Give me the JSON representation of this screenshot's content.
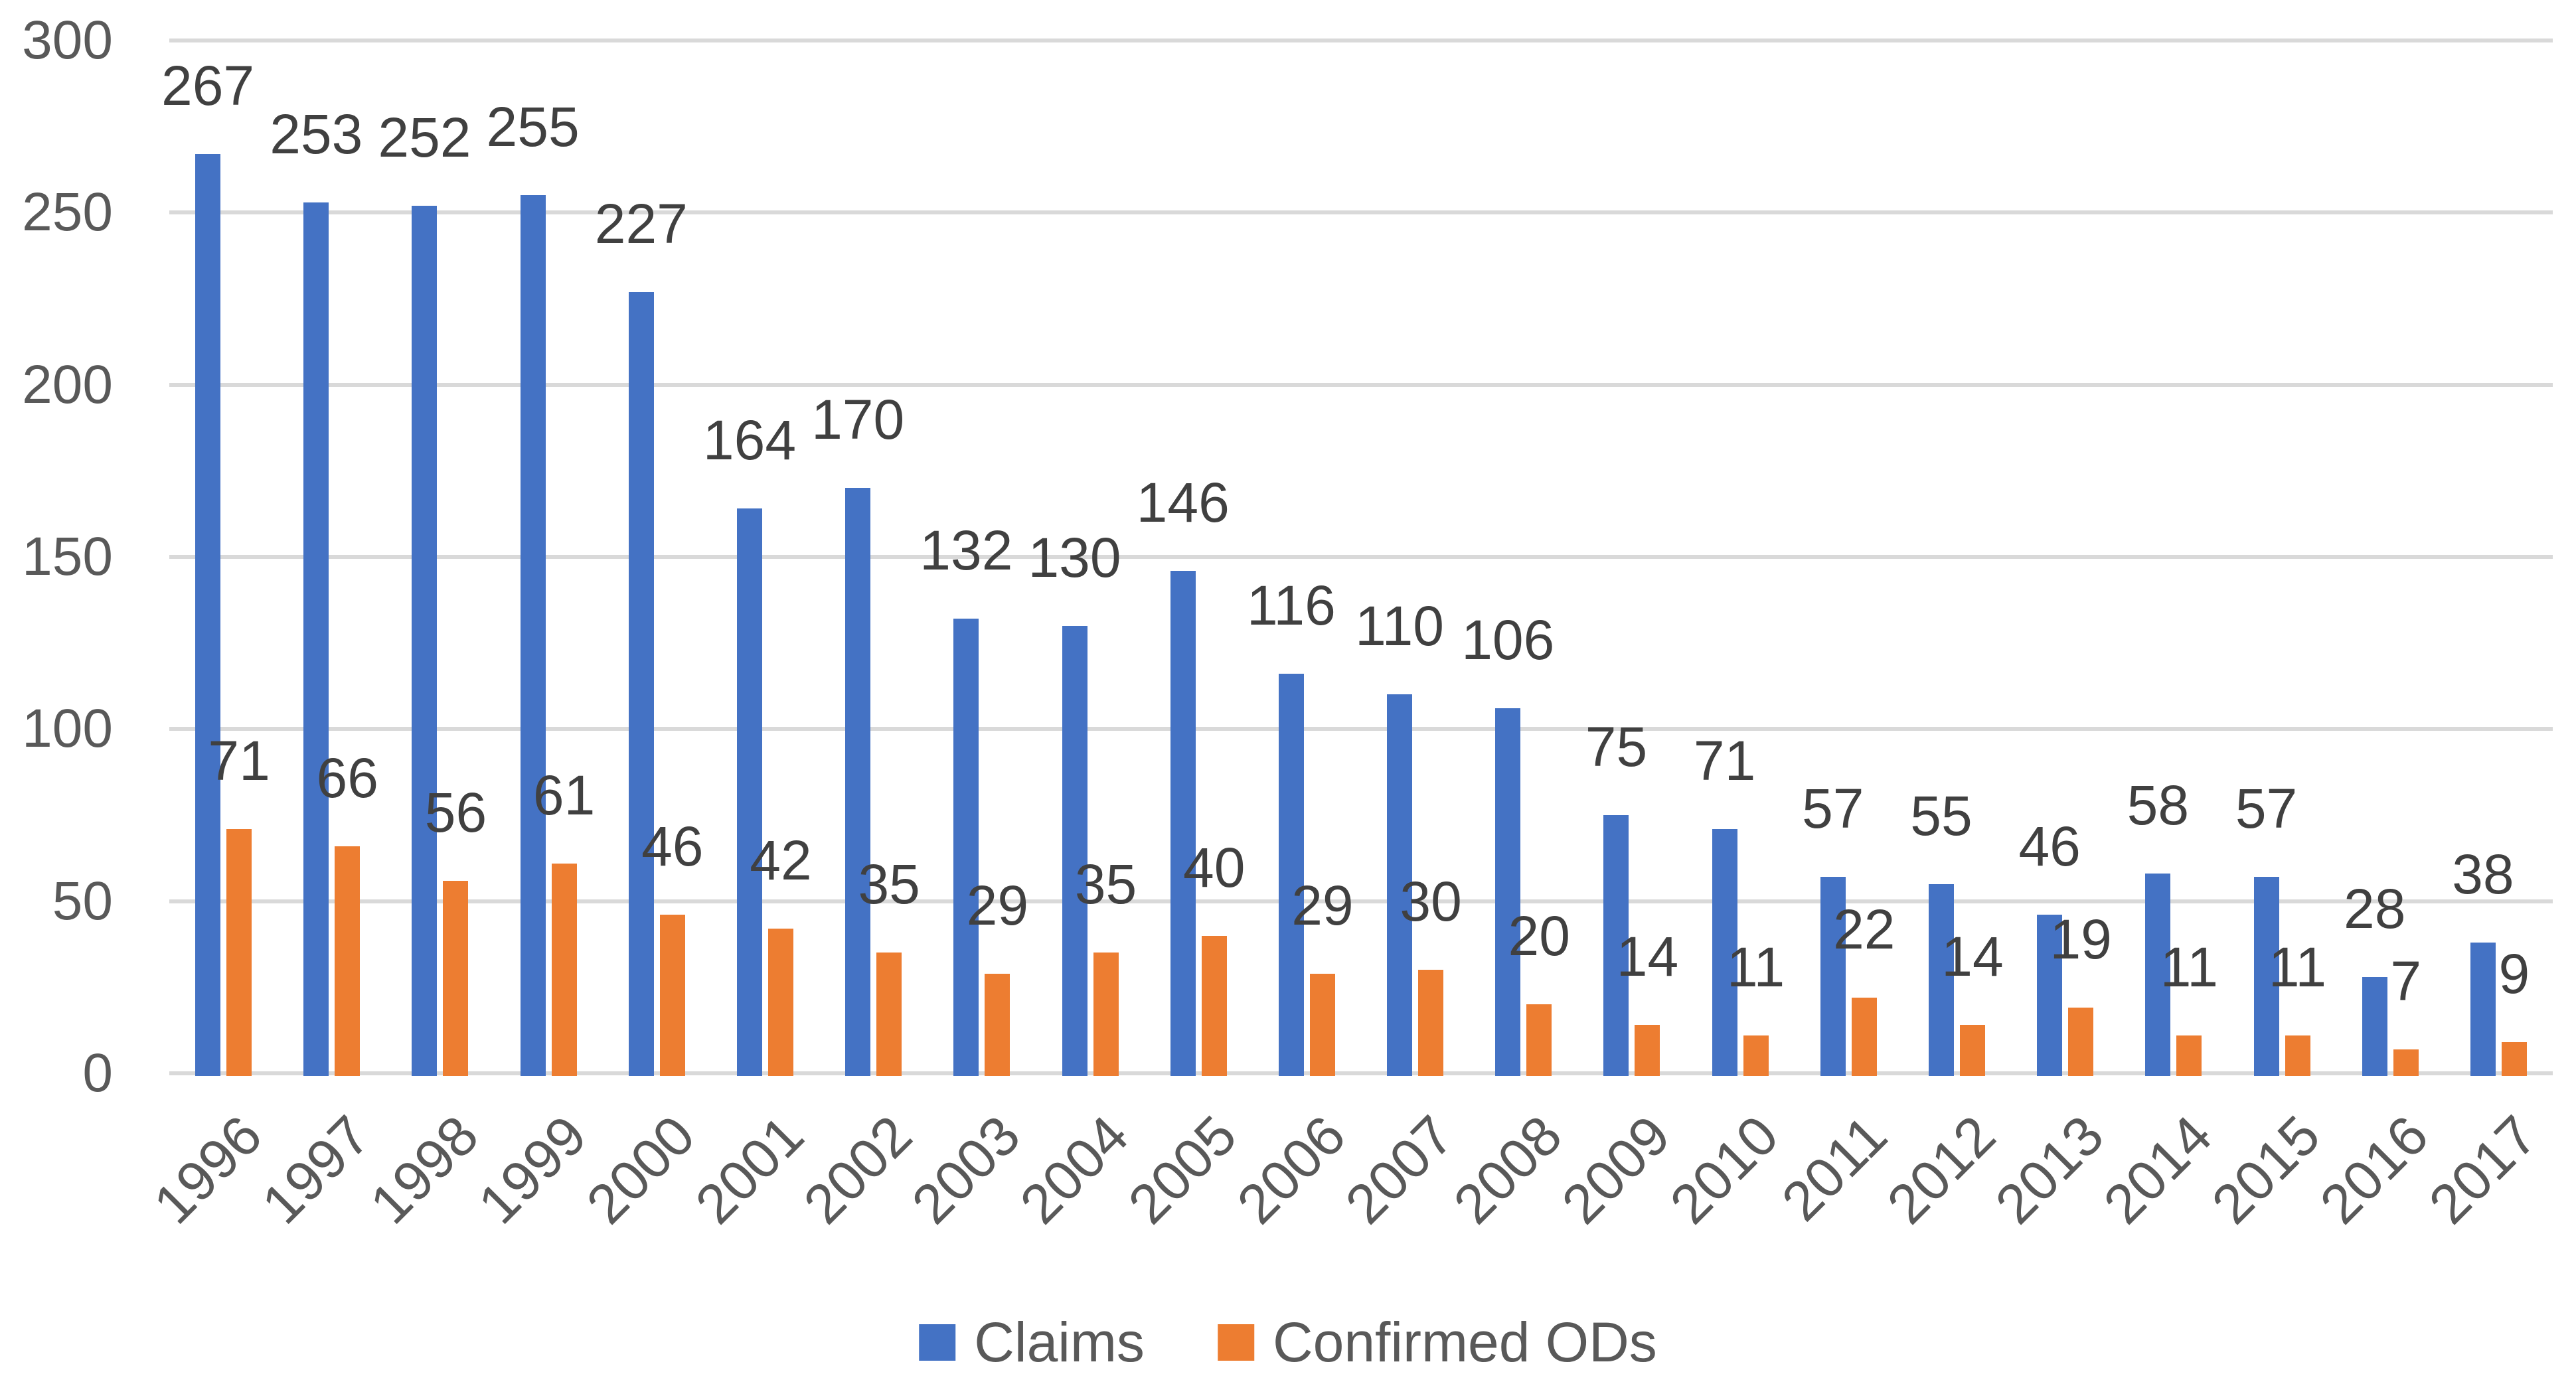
{
  "chart_data": {
    "type": "bar",
    "title": "",
    "categories": [
      "1996",
      "1997",
      "1998",
      "1999",
      "2000",
      "2001",
      "2002",
      "2003",
      "2004",
      "2005",
      "2006",
      "2007",
      "2008",
      "2009",
      "2010",
      "2011",
      "2012",
      "2013",
      "2014",
      "2015",
      "2016",
      "2017"
    ],
    "series": [
      {
        "name": "Claims",
        "color": "#4472C4",
        "values": [
          267,
          253,
          252,
          255,
          227,
          164,
          170,
          132,
          130,
          146,
          116,
          110,
          106,
          75,
          71,
          57,
          55,
          46,
          58,
          57,
          28,
          38
        ]
      },
      {
        "name": "Confirmed ODs",
        "color": "#ED7D31",
        "values": [
          71,
          66,
          56,
          61,
          46,
          42,
          35,
          29,
          35,
          40,
          29,
          30,
          20,
          14,
          11,
          22,
          14,
          19,
          11,
          11,
          7,
          9
        ]
      }
    ],
    "y_axis": {
      "min": 0,
      "max": 300,
      "step": 50,
      "tick_labels": [
        "0",
        "50",
        "100",
        "150",
        "200",
        "250",
        "300"
      ]
    },
    "xlabel": "",
    "ylabel": "",
    "grid": true,
    "data_labels": true,
    "legend_position": "bottom",
    "colors": {
      "gridline": "#D9D9D9",
      "axis_text": "#595959",
      "data_label_text": "#404040",
      "background": "#FFFFFF"
    }
  }
}
